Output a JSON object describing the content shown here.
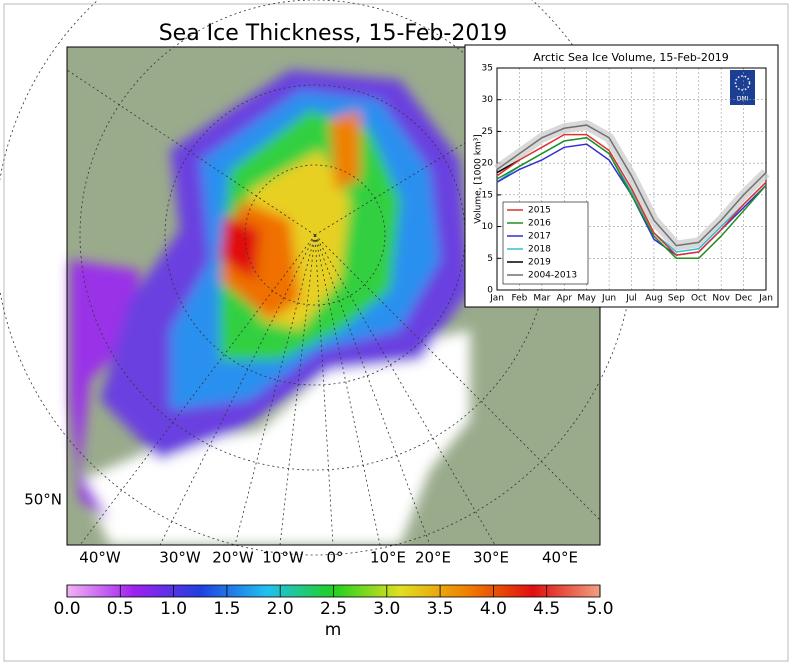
{
  "chart_data": [
    {
      "type": "map",
      "title": "Sea Ice Thickness, 15-Feb-2019",
      "x_labels": [
        "40°W",
        "30°W",
        "20°W",
        "10°W",
        "0°",
        "10°E",
        "20°E",
        "30°E",
        "40°E"
      ],
      "y_labels": [
        "50°N"
      ],
      "land_color": "#9aab8c",
      "colorbar": {
        "label": "m",
        "clim": [
          0,
          5
        ],
        "colormap": [
          "#f3b3f3",
          "#a020f0",
          "#2040e0",
          "#20c0f0",
          "#20d020",
          "#e0e020",
          "#f08000",
          "#e01010",
          "#f0a080"
        ],
        "ticks": [
          {
            "value": 0,
            "label": "0.0"
          },
          {
            "value": 0.5,
            "label": "0.5"
          },
          {
            "value": 1,
            "label": "1.0"
          },
          {
            "value": 1.5,
            "label": "1.5"
          },
          {
            "value": 2,
            "label": "2.0"
          },
          {
            "value": 2.5,
            "label": "2.5"
          },
          {
            "value": 3,
            "label": "3.0"
          },
          {
            "value": 3.5,
            "label": "3.5"
          },
          {
            "value": 4,
            "label": "4.0"
          },
          {
            "value": 4.5,
            "label": "4.5"
          },
          {
            "value": 5,
            "label": "5.0"
          }
        ]
      }
    },
    {
      "type": "line",
      "title": "Arctic Sea Ice Volume, 15-Feb-2019",
      "y_label": "Volume, [1000 km³]",
      "logo": "DMI",
      "categories": [
        "Jan",
        "Feb",
        "Mar",
        "Apr",
        "May",
        "Jun",
        "Jul",
        "Aug",
        "Sep",
        "Oct",
        "Nov",
        "Dec",
        "Jan"
      ],
      "ylim": [
        0,
        35
      ],
      "yticks": [
        0,
        5,
        10,
        15,
        20,
        25,
        30,
        35
      ],
      "grid": true,
      "legend": "lower left",
      "series": [
        {
          "name": "2015",
          "color": "#e03030",
          "values": [
            18,
            20.5,
            22.5,
            24.5,
            24.5,
            22,
            16,
            9,
            5.5,
            6,
            9.5,
            13.5,
            17
          ]
        },
        {
          "name": "2016",
          "color": "#209020",
          "values": [
            17.5,
            19.5,
            21.5,
            23.5,
            24,
            21.5,
            15,
            8.5,
            5,
            5,
            8.5,
            12.5,
            16.5
          ]
        },
        {
          "name": "2017",
          "color": "#3030d0",
          "values": [
            17,
            19,
            20.5,
            22.5,
            23,
            20.5,
            15,
            8,
            5.5,
            6,
            9.5,
            13,
            16.5
          ]
        },
        {
          "name": "2018",
          "color": "#30c0d0",
          "values": [
            17,
            19.5,
            21.5,
            23.5,
            24,
            21.5,
            15.5,
            9,
            6,
            6.5,
            10,
            13.5,
            17
          ]
        },
        {
          "name": "2019",
          "color": "#000000",
          "values": [
            18.5,
            20.5,
            null,
            null,
            null,
            null,
            null,
            null,
            null,
            null,
            null,
            null,
            null
          ]
        },
        {
          "name": "2004-2013",
          "color": "#707070",
          "values": [
            19,
            21.5,
            24,
            25.5,
            26,
            24,
            18,
            11,
            7,
            7.5,
            11,
            15,
            18.5
          ]
        }
      ]
    }
  ]
}
